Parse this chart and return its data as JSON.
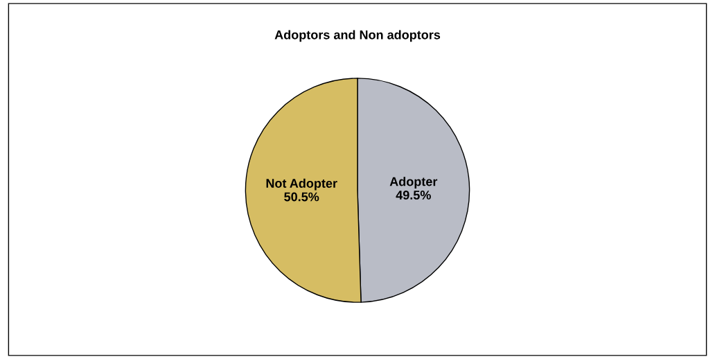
{
  "chart_data": {
    "type": "pie",
    "title": "Adoptors and Non adoptors",
    "categories": [
      "Adopter",
      "Not Adopter"
    ],
    "values": [
      49.5,
      50.5
    ],
    "value_labels": [
      "49.5%",
      "50.5%"
    ],
    "colors": [
      "#b9bcc6",
      "#d6bd63"
    ]
  }
}
